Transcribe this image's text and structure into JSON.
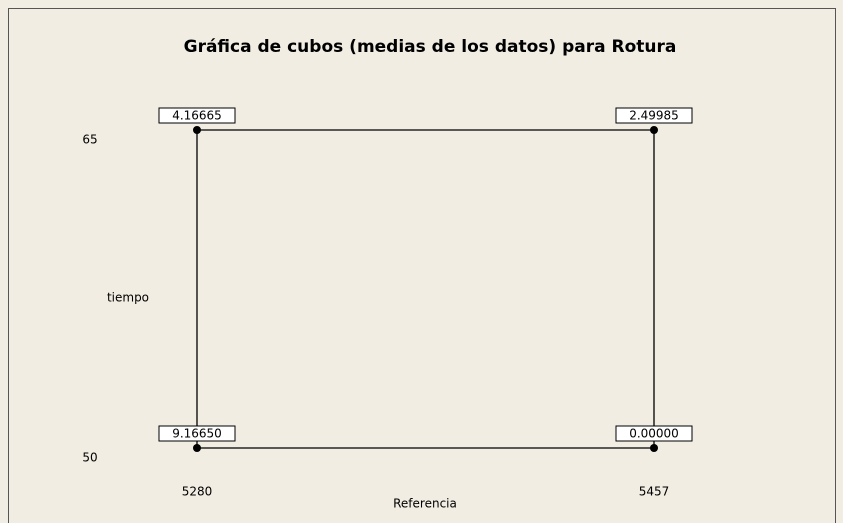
{
  "chart_data": {
    "type": "cube",
    "title": "Gráfica de cubos (medias de los datos) para Rotura",
    "x_label": "Referencia",
    "y_label": "tiempo",
    "xlim": [
      5280,
      5457
    ],
    "xticks": [
      5280,
      5457
    ],
    "ylim": [
      50,
      65
    ],
    "yticks": [
      50,
      65
    ],
    "x": [
      5280,
      5457,
      5280,
      5457
    ],
    "y": [
      50,
      50,
      65,
      65
    ],
    "values": [
      9.1665,
      0,
      4.16665,
      2.49985
    ],
    "value_labels": [
      "9.16650",
      "0.00000",
      "4.16665",
      "2.49985"
    ],
    "color": "#000000"
  }
}
